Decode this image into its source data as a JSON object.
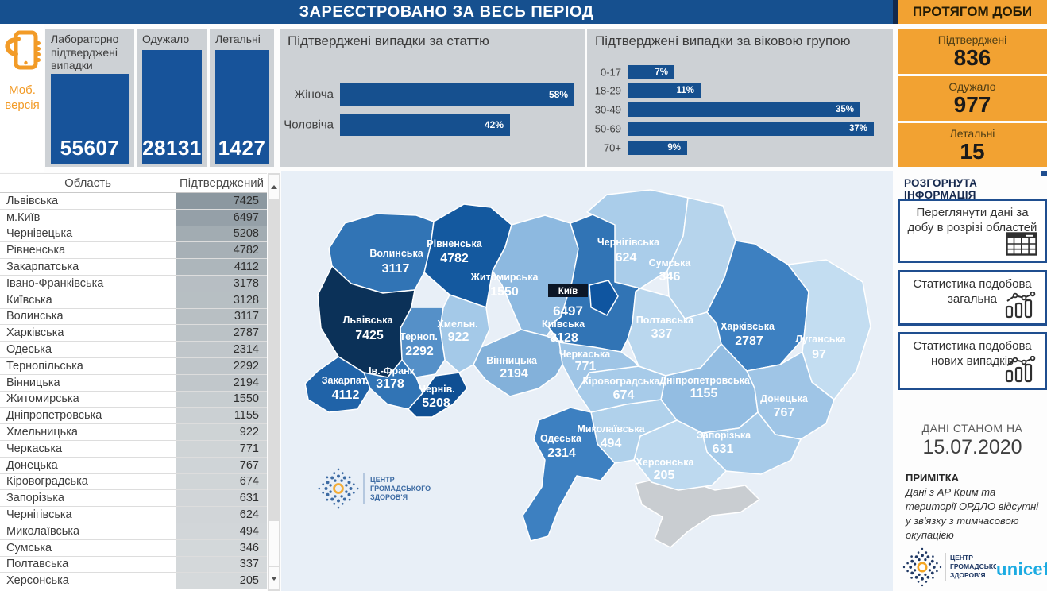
{
  "header": {
    "title": "ЗАРЕЄСТРОВАНО ЗА ВЕСЬ ПЕРІОД",
    "daily_title": "ПРОТЯГОМ ДОБИ"
  },
  "mobile": {
    "line1": "Моб.",
    "line2": "версія"
  },
  "kpi_cards": [
    {
      "label": "Лабораторно підтверджені випадки",
      "value": "55607"
    },
    {
      "label": "Одужало",
      "value": "28131"
    },
    {
      "label": "Летальні",
      "value": "1427"
    }
  ],
  "daily_cards": [
    {
      "label": "Підтверджені",
      "value": "836"
    },
    {
      "label": "Одужало",
      "value": "977"
    },
    {
      "label": "Летальні",
      "value": "15"
    }
  ],
  "chart_data": [
    {
      "type": "bar",
      "orientation": "horizontal",
      "title": "Підтверджені випадки за статтю",
      "categories": [
        "Жіноча",
        "Чоловіча"
      ],
      "values": [
        58,
        42
      ],
      "value_suffix": "%",
      "bar_color": "#16508F",
      "xlim": [
        0,
        60
      ],
      "grid": false
    },
    {
      "type": "bar",
      "orientation": "horizontal",
      "title": "Підтверджені випадки за віковою групою",
      "categories": [
        "0-17",
        "18-29",
        "30-49",
        "50-69",
        "70+"
      ],
      "values": [
        7,
        11,
        35,
        37,
        9
      ],
      "value_suffix": "%",
      "bar_color": "#16508F",
      "xlim": [
        0,
        40
      ],
      "grid": false
    }
  ],
  "info": {
    "heading": "РОЗГОРНУТА ІНФОРМАЦІЯ",
    "buttons": [
      {
        "label": "Переглянути дані за добу в розрізі областей",
        "icon": "table-icon"
      },
      {
        "label": "Статистика подобова загальна",
        "icon": "line-chart-icon"
      },
      {
        "label": "Статистика подобова нових випадків",
        "icon": "line-chart-icon"
      }
    ]
  },
  "as_of": {
    "label": "ДАНІ СТАНОМ НА",
    "date": "15.07.2020"
  },
  "note": {
    "heading": "ПРИМІТКА",
    "text": "Дані з АР Крим та території ОРДЛО відсутні у зв'язку з тимчасовою окупацією"
  },
  "logos": {
    "cgz_lines": [
      "ЦЕНТР",
      "ГРОМАДСЬКОГО",
      "ЗДОРОВ'Я"
    ],
    "cgz_blue": "#2B5D9B",
    "cgz_orange": "#F5A623",
    "unicef": "unicef",
    "unicef_color": "#1CABE2"
  },
  "table": {
    "columns": [
      "Область",
      "Підтверджений"
    ],
    "rows": [
      [
        "Львівська",
        7425
      ],
      [
        "м.Київ",
        6497
      ],
      [
        "Чернівецька",
        5208
      ],
      [
        "Рівненська",
        4782
      ],
      [
        "Закарпатська",
        4112
      ],
      [
        "Івано-Франківська",
        3178
      ],
      [
        "Київська",
        3128
      ],
      [
        "Волинська",
        3117
      ],
      [
        "Харківська",
        2787
      ],
      [
        "Одеська",
        2314
      ],
      [
        "Тернопільська",
        2292
      ],
      [
        "Вінницька",
        2194
      ],
      [
        "Житомирська",
        1550
      ],
      [
        "Дніпропетровська",
        1155
      ],
      [
        "Хмельницька",
        922
      ],
      [
        "Черкаська",
        771
      ],
      [
        "Донецька",
        767
      ],
      [
        "Кіровоградська",
        674
      ],
      [
        "Запорізька",
        631
      ],
      [
        "Чернігівська",
        624
      ],
      [
        "Миколаївська",
        494
      ],
      [
        "Сумська",
        346
      ],
      [
        "Полтавська",
        337
      ],
      [
        "Херсонська",
        205
      ]
    ]
  },
  "map": {
    "sea_color": "#E8EFF7",
    "crimea_color": "#C9CDD1",
    "regions": [
      {
        "id": "volyn",
        "label": "Волинська",
        "value": 3117,
        "fill": "#3174B5"
      },
      {
        "id": "rivne",
        "label": "Рівненська",
        "value": 4782,
        "fill": "#14599F"
      },
      {
        "id": "zhytomyr",
        "label": "Житомирська",
        "value": 1550,
        "fill": "#8DB9E0"
      },
      {
        "id": "kyiv_obl",
        "label": "Київська",
        "value": 3128,
        "fill": "#3174B5"
      },
      {
        "id": "chernihiv",
        "label": "Чернігівська",
        "value": 624,
        "fill": "#AACDEA"
      },
      {
        "id": "sumy",
        "label": "Сумська",
        "value": 346,
        "fill": "#B6D4EC"
      },
      {
        "id": "poltava",
        "label": "Полтавська",
        "value": 337,
        "fill": "#BAD7EE"
      },
      {
        "id": "kharkiv",
        "label": "Харківська",
        "value": 2787,
        "fill": "#3D80C1"
      },
      {
        "id": "luhansk",
        "label": "Луганська",
        "value": 97,
        "fill": "#C3DDF1"
      },
      {
        "id": "donetsk",
        "label": "Донецька",
        "value": 767,
        "fill": "#9FC5E6"
      },
      {
        "id": "dnipro",
        "label": "Дніпропетровська",
        "value": 1155,
        "fill": "#93BDE2"
      },
      {
        "id": "zaporizhzhia",
        "label": "Запорізька",
        "value": 631,
        "fill": "#A7CBE9"
      },
      {
        "id": "kherson",
        "label": "Херсонська",
        "value": 205,
        "fill": "#BDD9EF"
      },
      {
        "id": "mykolaiv",
        "label": "Миколаївська",
        "value": 494,
        "fill": "#B0D1EB"
      },
      {
        "id": "odesa",
        "label": "Одеська",
        "value": 2314,
        "fill": "#3D80C1"
      },
      {
        "id": "kirovohrad",
        "label": "Кіровоградська",
        "value": 674,
        "fill": "#A7CBE9"
      },
      {
        "id": "cherkasy",
        "label": "Черкаська",
        "value": 771,
        "fill": "#9FC5E6"
      },
      {
        "id": "vinnytsia",
        "label": "Вінницька",
        "value": 2194,
        "fill": "#83B1DA"
      },
      {
        "id": "khmelnytskyi",
        "label": "Хмельн.",
        "value": 922,
        "fill": "#A4C9E8"
      },
      {
        "id": "ternopil",
        "label": "Терноп.",
        "value": 2292,
        "fill": "#5590C8"
      },
      {
        "id": "lviv",
        "label": "Львівська",
        "value": 7425,
        "fill": "#0B3158"
      },
      {
        "id": "zakarpattia",
        "label": "Закарпат.",
        "value": 4112,
        "fill": "#2063A8"
      },
      {
        "id": "ivano_frankivsk",
        "label": "Ів.-Франк",
        "value": 3178,
        "fill": "#3174B5"
      },
      {
        "id": "chernivtsi",
        "label": "Чернів.",
        "value": 5208,
        "fill": "#0F4F93"
      },
      {
        "id": "kyiv_city",
        "label": "Київ",
        "value": 6497,
        "fill": "#0F55A0"
      }
    ]
  }
}
